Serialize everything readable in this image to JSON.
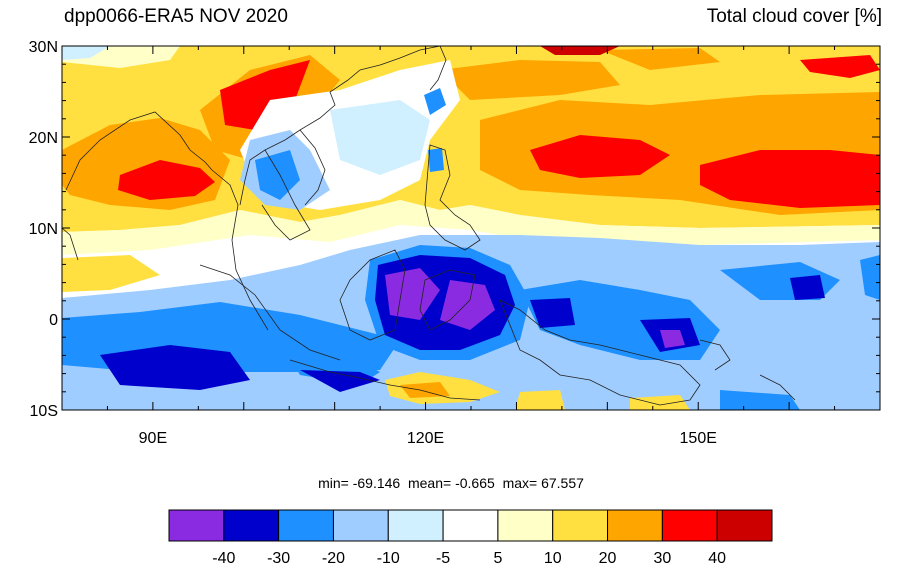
{
  "header": {
    "left_title": "dpp0066-ERA5 NOV 2020",
    "right_title": "Total cloud cover [%]"
  },
  "map": {
    "lon_range": [
      80,
      170
    ],
    "lat_range": [
      -10,
      30
    ],
    "lat_ticks": [
      {
        "value": 30,
        "label": "30N"
      },
      {
        "value": 20,
        "label": "20N"
      },
      {
        "value": 10,
        "label": "10N"
      },
      {
        "value": 0,
        "label": "0"
      },
      {
        "value": -10,
        "label": "10S"
      }
    ],
    "lon_ticks": [
      {
        "value": 90,
        "label": "90E"
      },
      {
        "value": 120,
        "label": "120E"
      },
      {
        "value": 150,
        "label": "150E"
      }
    ]
  },
  "stats": {
    "min_label": "min=",
    "min": "-69.146",
    "mean_label": "mean=",
    "mean": "-0.665",
    "max_label": "max=",
    "max": "67.557"
  },
  "colorbar": {
    "colors": [
      "#8a2be2",
      "#0000cd",
      "#1e90ff",
      "#a0cdff",
      "#d0f0ff",
      "#ffffff",
      "#ffffc8",
      "#ffe040",
      "#ffa500",
      "#ff0000",
      "#cd0000"
    ],
    "labels": [
      "-40",
      "-30",
      "-20",
      "-10",
      "-5",
      "5",
      "10",
      "20",
      "30",
      "40"
    ]
  }
}
